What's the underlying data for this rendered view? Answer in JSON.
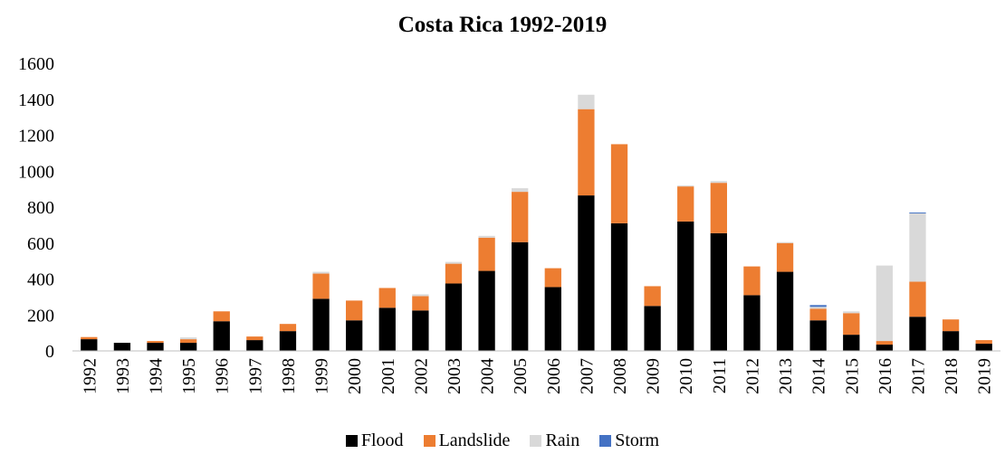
{
  "chart_data": {
    "type": "bar",
    "stacked": true,
    "title": "Costa Rica 1992-2019",
    "xlabel": "",
    "ylabel": "",
    "ylim": [
      0,
      1600
    ],
    "yticks": [
      0,
      200,
      400,
      600,
      800,
      1000,
      1200,
      1400,
      1600
    ],
    "grid": false,
    "legend_position": "bottom",
    "categories": [
      "1992",
      "1993",
      "1994",
      "1995",
      "1996",
      "1997",
      "1998",
      "1999",
      "2000",
      "2001",
      "2002",
      "2003",
      "2004",
      "2005",
      "2006",
      "2007",
      "2008",
      "2009",
      "2010",
      "2011",
      "2012",
      "2013",
      "2014",
      "2015",
      "2016",
      "2017",
      "2018",
      "2019"
    ],
    "series": [
      {
        "name": "Flood",
        "color": "#000000",
        "values": [
          65,
          45,
          45,
          45,
          165,
          60,
          110,
          290,
          170,
          240,
          225,
          375,
          445,
          605,
          355,
          865,
          710,
          250,
          720,
          655,
          310,
          440,
          170,
          90,
          35,
          190,
          110,
          40
        ]
      },
      {
        "name": "Landslide",
        "color": "#ed7d31",
        "values": [
          12,
          0,
          10,
          20,
          55,
          20,
          40,
          140,
          110,
          110,
          80,
          110,
          185,
          280,
          105,
          480,
          440,
          110,
          195,
          280,
          160,
          160,
          65,
          120,
          20,
          195,
          65,
          20
        ]
      },
      {
        "name": "Rain",
        "color": "#d9d9d9",
        "values": [
          0,
          0,
          0,
          10,
          0,
          0,
          0,
          10,
          0,
          0,
          10,
          10,
          10,
          20,
          0,
          80,
          0,
          0,
          5,
          10,
          0,
          5,
          10,
          10,
          420,
          380,
          0,
          0
        ]
      },
      {
        "name": "Storm",
        "color": "#4472c4",
        "values": [
          0,
          0,
          0,
          0,
          0,
          0,
          0,
          0,
          0,
          0,
          0,
          0,
          0,
          0,
          0,
          0,
          0,
          0,
          0,
          0,
          0,
          0,
          10,
          0,
          0,
          5,
          0,
          0
        ]
      }
    ]
  }
}
